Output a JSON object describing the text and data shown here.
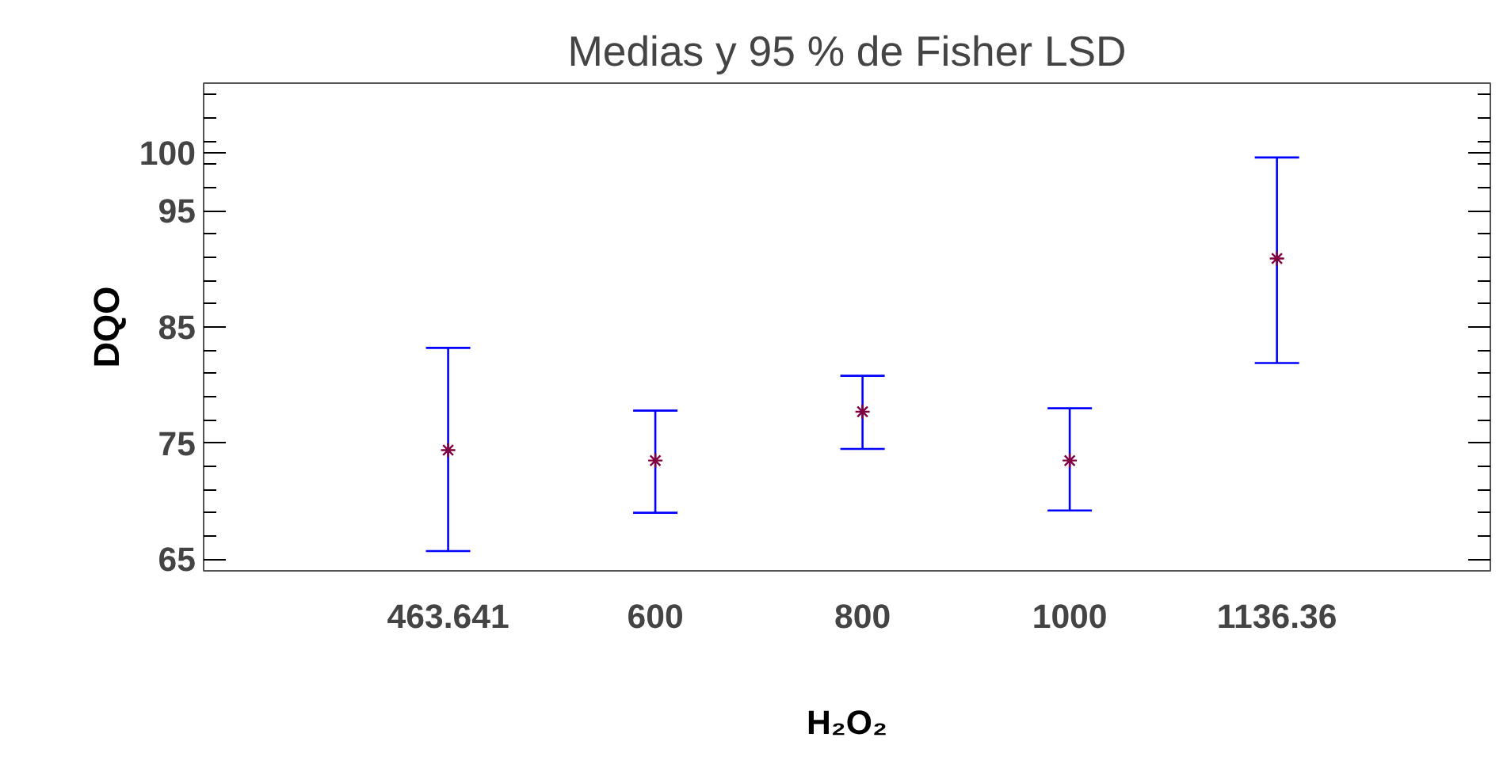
{
  "chart_data": {
    "type": "scatter",
    "title": "Medias y 95 % de Fisher LSD",
    "xlabel": "H₂O₂",
    "ylabel": "DQO",
    "categories": [
      "463.641",
      "600",
      "800",
      "1000",
      "1136.36"
    ],
    "series": [
      {
        "color": "#800040",
        "values": [
          74.4,
          73.5,
          77.7,
          73.5,
          90.9
        ],
        "errors": [
          [
            65.7,
            83.2
          ],
          [
            69.0,
            77.8
          ],
          [
            74.5,
            80.8
          ],
          [
            69.2,
            78.0
          ],
          [
            81.9,
            99.6
          ]
        ]
      }
    ],
    "ylim": [
      64,
      106
    ],
    "yticks": [
      100,
      95,
      85,
      75,
      65
    ],
    "grid": false,
    "marker": "cross"
  }
}
